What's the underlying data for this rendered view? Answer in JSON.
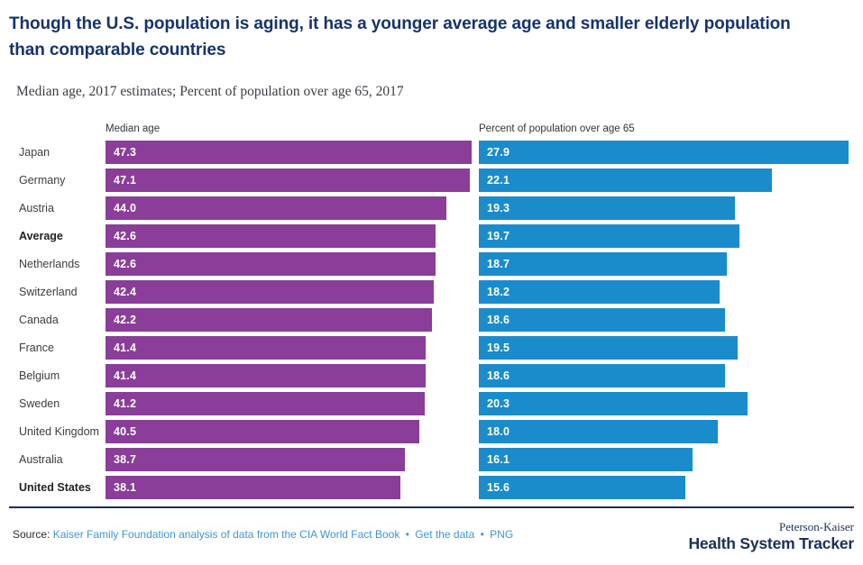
{
  "title": "Though the U.S. population is aging, it has a younger average age and smaller elderly population than comparable countries",
  "subtitle": "Median age, 2017 estimates; Percent of population over age 65, 2017",
  "chart_data": {
    "type": "bar",
    "orientation": "horizontal",
    "title": "Median age, 2017 estimates; Percent of population over age 65, 2017",
    "categories": [
      "Japan",
      "Germany",
      "Austria",
      "Average",
      "Netherlands",
      "Switzerland",
      "Canada",
      "France",
      "Belgium",
      "Sweden",
      "United Kingdom",
      "Australia",
      "United States"
    ],
    "emphasized_categories": [
      "Average",
      "United States"
    ],
    "series": [
      {
        "name": "Median age",
        "color": "#8a3d99",
        "axis_max": 47.3,
        "values": [
          47.3,
          47.1,
          44.0,
          42.6,
          42.6,
          42.4,
          42.2,
          41.4,
          41.4,
          41.2,
          40.5,
          38.7,
          38.1
        ]
      },
      {
        "name": "Percent of population over age 65",
        "color": "#1a8ccb",
        "axis_max": 27.9,
        "values": [
          27.9,
          22.1,
          19.3,
          19.7,
          18.7,
          18.2,
          18.6,
          19.5,
          18.6,
          20.3,
          18.0,
          16.1,
          15.6
        ]
      }
    ],
    "value_labels": "inside-left-white",
    "grid": false,
    "legend": "column headers above each bar group"
  },
  "footer": {
    "source_label": "Source:",
    "source_link": "Kaiser Family Foundation analysis of data from the CIA World Fact Book",
    "separator": "•",
    "links": [
      "Get the data",
      "PNG"
    ],
    "logo_top": "Peterson-Kaiser",
    "logo_bottom": "Health System Tracker"
  },
  "colors": {
    "title_navy": "#16336d",
    "median_age_purple": "#8a3d99",
    "over65_blue": "#1a8ccb",
    "divider_navy": "#1b2f52",
    "link_blue": "#3e96d2",
    "logo_navy": "#1b3055"
  }
}
